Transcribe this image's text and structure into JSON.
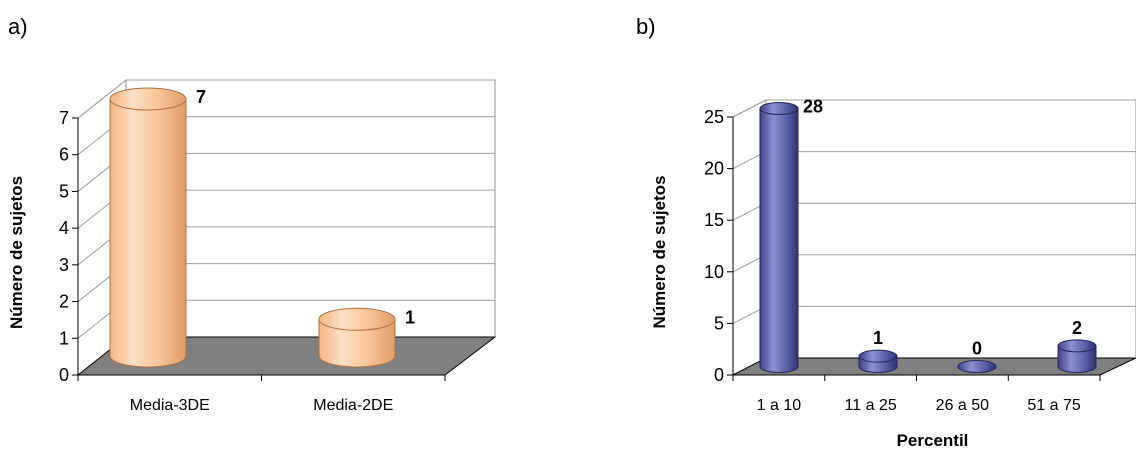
{
  "panels": [
    {
      "label": "a)"
    },
    {
      "label": "b)"
    }
  ],
  "chart_data": [
    {
      "type": "bar",
      "style": "3d-cylinder",
      "categories": [
        "Media-3DE",
        "Media-2DE"
      ],
      "values": [
        7,
        1
      ],
      "data_labels": [
        "7",
        "1"
      ],
      "ylabel": "Número de sujetos",
      "xlabel": "",
      "ylim": [
        0,
        7
      ],
      "yticks": [
        "0",
        "1",
        "2",
        "3",
        "4",
        "5",
        "6",
        "7"
      ],
      "grid": true,
      "legend": "none",
      "bar_color": "#f7c08f"
    },
    {
      "type": "bar",
      "style": "3d-cylinder",
      "categories": [
        "1 a 10",
        "11 a 25",
        "26 a 50",
        "51 a 75"
      ],
      "values": [
        28,
        1,
        0,
        2
      ],
      "data_labels": [
        "28",
        "1",
        "0",
        "2"
      ],
      "ylabel": "Número de sujetos",
      "xlabel": "Percentil",
      "ylim": [
        0,
        25
      ],
      "yticks": [
        "0",
        "5",
        "10",
        "15",
        "20",
        "25"
      ],
      "grid": true,
      "legend": "none",
      "bar_color": "#5a5fa8"
    }
  ]
}
